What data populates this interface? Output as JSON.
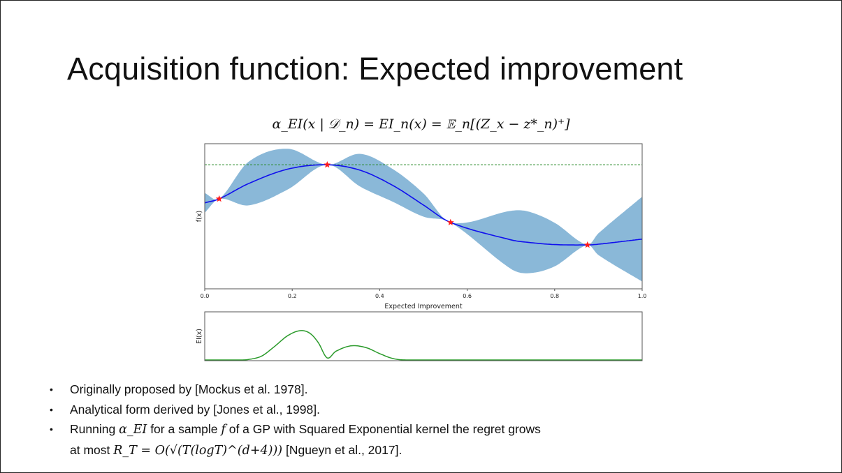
{
  "slide": {
    "title": "Acquisition function: Expected improvement",
    "formula": "α_EI(x | 𝒟_n) = EI_n(x) = 𝔼_n[(Z_x − z*_n)⁺]",
    "bullets": [
      {
        "text": "Originally proposed by [Mockus et al. 1978]."
      },
      {
        "text": "Analytical form derived by [Jones et al., 1998]."
      },
      {
        "pre": "Running ",
        "math1": "α_EI",
        "mid": " for a sample ",
        "math2": "f",
        "post": " of a GP with Squared Exponential kernel the regret grows",
        "line2_pre": "at most ",
        "math3": "R_T = O(√(T(logT)^(d+4)))",
        "line2_post": " [Ngueyn et al., 2017]."
      }
    ]
  },
  "chart_data": [
    {
      "type": "line",
      "title": "",
      "xlabel": "",
      "ylabel": "f(x)",
      "xlim": [
        0.0,
        1.0
      ],
      "ylim": [
        -2,
        2
      ],
      "xticks": [
        "0.0",
        "0.2",
        "0.4",
        "0.6",
        "0.8",
        "1.0"
      ],
      "grid": false,
      "series": [
        {
          "kind": "mean",
          "color": "#1010ee",
          "x": [
            0,
            0.033,
            0.1,
            0.19,
            0.28,
            0.355,
            0.43,
            0.5,
            0.562,
            0.7,
            0.74,
            0.8,
            0.875,
            0.9,
            1.0
          ],
          "y": [
            0.37,
            0.48,
            0.9,
            1.3,
            1.42,
            1.27,
            0.85,
            0.31,
            -0.17,
            -0.65,
            -0.72,
            -0.78,
            -0.79,
            -0.77,
            -0.63
          ]
        },
        {
          "kind": "uncertainty-band",
          "color": "#8ab8d8",
          "x": [
            0,
            0.033,
            0.1,
            0.19,
            0.28,
            0.355,
            0.43,
            0.5,
            0.562,
            0.7,
            0.74,
            0.8,
            0.875,
            0.9,
            1.0
          ],
          "half_width": [
            0.27,
            0,
            0.6,
            0.56,
            0,
            0.45,
            0.45,
            0.32,
            0,
            0.8,
            0.85,
            0.6,
            0,
            0.3,
            1.17
          ]
        },
        {
          "kind": "observations",
          "color": "#ff1a1a",
          "marker": "star",
          "x": [
            0.033,
            0.28,
            0.562,
            0.875
          ],
          "y": [
            0.48,
            1.42,
            -0.17,
            -0.79
          ]
        },
        {
          "kind": "best-so-far",
          "color": "#2a8a2a",
          "style": "dashed",
          "y": 1.42
        }
      ]
    },
    {
      "type": "line",
      "title": "Expected Improvement",
      "ylabel": "EI(x)",
      "xlim": [
        0.0,
        1.0
      ],
      "ylim": [
        0,
        1
      ],
      "grid": false,
      "series": [
        {
          "color": "#2a9a2a",
          "x": [
            0,
            0.08,
            0.1,
            0.13,
            0.16,
            0.19,
            0.218,
            0.24,
            0.26,
            0.28,
            0.3,
            0.335,
            0.37,
            0.4,
            0.43,
            0.46,
            0.6,
            1.0
          ],
          "y": [
            0,
            0,
            0.01,
            0.08,
            0.28,
            0.5,
            0.6,
            0.55,
            0.35,
            0.04,
            0.18,
            0.29,
            0.25,
            0.13,
            0.03,
            0,
            0,
            0
          ]
        }
      ]
    }
  ]
}
